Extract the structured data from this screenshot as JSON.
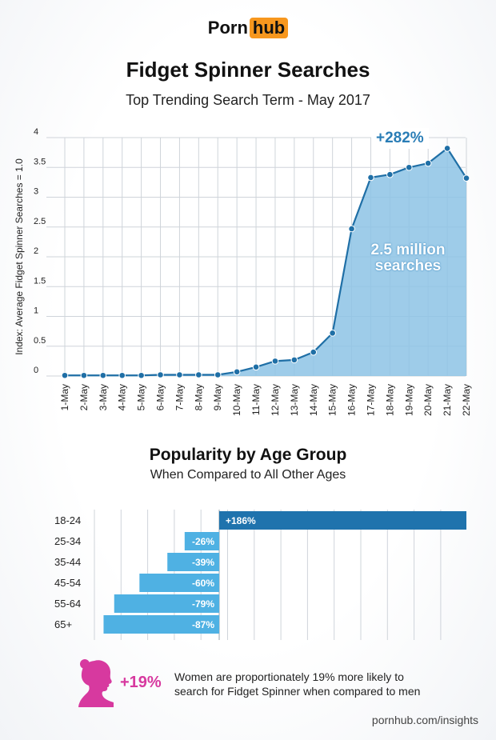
{
  "header": {
    "logo_left": "Porn",
    "logo_right": "hub",
    "title": "Fidget Spinner Searches",
    "subtitle": "Top Trending Search Term - May 2017"
  },
  "chart_data": [
    {
      "type": "area",
      "ylabel": "Index: Average Fidget Spinner Searches = 1.0",
      "ylim": [
        0,
        4
      ],
      "yticks": [
        "0",
        "0.5",
        "1",
        "1.5",
        "2",
        "2.5",
        "3",
        "3.5",
        "4"
      ],
      "categories": [
        "1-May",
        "2-May",
        "3-May",
        "4-May",
        "5-May",
        "6-May",
        "7-May",
        "8-May",
        "9-May",
        "10-May",
        "11-May",
        "12-May",
        "13-May",
        "14-May",
        "15-May",
        "16-May",
        "17-May",
        "18-May",
        "19-May",
        "20-May",
        "21-May",
        "22-May"
      ],
      "values": [
        0.01,
        0.01,
        0.01,
        0.01,
        0.01,
        0.02,
        0.02,
        0.02,
        0.02,
        0.07,
        0.15,
        0.25,
        0.27,
        0.4,
        0.72,
        2.47,
        3.33,
        3.38,
        3.5,
        3.57,
        3.82,
        3.32
      ],
      "annotations": [
        "+282%",
        "2.5 million searches"
      ],
      "grid": true,
      "colors": {
        "fill": "#8dc3e5",
        "line": "#1f6fa6",
        "point": "#1f6fa6"
      }
    },
    {
      "type": "bar",
      "title": "Popularity by Age Group",
      "subtitle": "When Compared to All Other Ages",
      "categories": [
        "18-24",
        "25-34",
        "35-44",
        "45-54",
        "55-64",
        "65+"
      ],
      "values": [
        186,
        -26,
        -39,
        -60,
        -79,
        -87
      ],
      "labels": [
        "+186%",
        "-26%",
        "-39%",
        "-60%",
        "-79%",
        "-87%"
      ],
      "grid": true,
      "colors": {
        "positive": "#1f73ad",
        "negative": "#4fb1e3"
      }
    }
  ],
  "women": {
    "value": "+19%",
    "line1": "Women are proportionately 19% more likely to",
    "line2": "search for Fidget Spinner when compared to men",
    "color": "#d7399f"
  },
  "footer": "pornhub.com/insights"
}
